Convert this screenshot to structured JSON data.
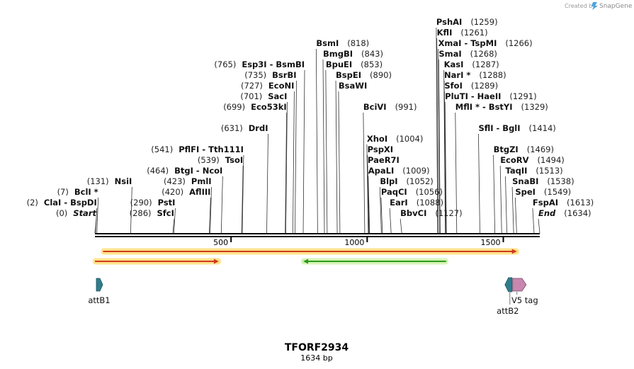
{
  "branding": {
    "credit": "Created by",
    "brand": "SnapGene"
  },
  "map": {
    "title": "TFORF2934",
    "length_label": "1634 bp",
    "length_bp": 1634,
    "ticks": [
      {
        "pos": 500,
        "label": "500"
      },
      {
        "pos": 1000,
        "label": "1000"
      },
      {
        "pos": 1500,
        "label": "1500"
      }
    ],
    "sites": [
      {
        "pos": 0,
        "num": "(0)",
        "name": "Start",
        "side": "right",
        "row": 0,
        "italic": true
      },
      {
        "pos": 2,
        "num": "(2)",
        "name": "ClaI  -  BspDI",
        "side": "right",
        "row": 1
      },
      {
        "pos": 7,
        "num": "(7)",
        "name": "BclI *",
        "side": "right",
        "row": 2
      },
      {
        "pos": 131,
        "num": "(131)",
        "name": "NsiI",
        "side": "right",
        "row": 3
      },
      {
        "pos": 286,
        "num": "(286)",
        "name": "SfcI",
        "side": "right",
        "row": 0
      },
      {
        "pos": 290,
        "num": "(290)",
        "name": "PstI",
        "side": "right",
        "row": 1
      },
      {
        "pos": 420,
        "num": "(420)",
        "name": "AflIII",
        "side": "right",
        "row": 2
      },
      {
        "pos": 423,
        "num": "(423)",
        "name": "PmlI",
        "side": "right",
        "row": 3
      },
      {
        "pos": 464,
        "num": "(464)",
        "name": "BtgI  -  NcoI",
        "side": "right",
        "row": 4
      },
      {
        "pos": 539,
        "num": "(539)",
        "name": "TsoI",
        "side": "right",
        "row": 5
      },
      {
        "pos": 541,
        "num": "(541)",
        "name": "PflFI  -  Tth111I",
        "side": "right",
        "row": 6
      },
      {
        "pos": 631,
        "num": "(631)",
        "name": "DrdI",
        "side": "right",
        "row": 8
      },
      {
        "pos": 699,
        "num": "(699)",
        "name": "Eco53kI",
        "side": "right",
        "row": 10
      },
      {
        "pos": 701,
        "num": "(701)",
        "name": "SacI",
        "side": "right",
        "row": 11
      },
      {
        "pos": 727,
        "num": "(727)",
        "name": "EcoNI",
        "side": "right",
        "row": 12
      },
      {
        "pos": 735,
        "num": "(735)",
        "name": "BsrBI",
        "side": "right",
        "row": 13
      },
      {
        "pos": 765,
        "num": "(765)",
        "name": "Esp3I  -  BsmBI",
        "side": "right",
        "row": 14
      },
      {
        "pos": 818,
        "num": "(818)",
        "name": "BsmI",
        "side": "left",
        "row": 16
      },
      {
        "pos": 843,
        "num": "(843)",
        "name": "BmgBI",
        "side": "left",
        "row": 15
      },
      {
        "pos": 853,
        "num": "(853)",
        "name": "BpuEI",
        "side": "left",
        "row": 14
      },
      {
        "pos": 890,
        "num": "(890)",
        "name": "BspEI",
        "side": "left",
        "row": 13
      },
      {
        "pos": 900,
        "num": "",
        "name": "BsaWI",
        "side": "left",
        "row": 12
      },
      {
        "pos": 991,
        "num": "(991)",
        "name": "BciVI",
        "side": "left",
        "row": 10
      },
      {
        "pos": 1004,
        "num": "(1004)",
        "name": "XhoI",
        "side": "left",
        "row": 7
      },
      {
        "pos": 1006,
        "num": "",
        "name": "PspXI",
        "side": "left",
        "row": 6
      },
      {
        "pos": 1007,
        "num": "",
        "name": "PaeR7I",
        "side": "left",
        "row": 5
      },
      {
        "pos": 1009,
        "num": "(1009)",
        "name": "ApaLI",
        "side": "left",
        "row": 4
      },
      {
        "pos": 1052,
        "num": "(1052)",
        "name": "BlpI",
        "side": "left",
        "row": 3
      },
      {
        "pos": 1056,
        "num": "(1056)",
        "name": "PaqCI",
        "side": "left",
        "row": 2
      },
      {
        "pos": 1088,
        "num": "(1088)",
        "name": "EarI",
        "side": "left",
        "row": 1
      },
      {
        "pos": 1127,
        "num": "(1127)",
        "name": "BbvCI",
        "side": "left",
        "row": 0
      },
      {
        "pos": 1259,
        "num": "(1259)",
        "name": "PshAI",
        "side": "left",
        "row": 18
      },
      {
        "pos": 1261,
        "num": "(1261)",
        "name": "KflI",
        "side": "left",
        "row": 17
      },
      {
        "pos": 1266,
        "num": "(1266)",
        "name": "XmaI  -  TspMI",
        "side": "left",
        "row": 16
      },
      {
        "pos": 1268,
        "num": "(1268)",
        "name": "SmaI",
        "side": "left",
        "row": 15
      },
      {
        "pos": 1287,
        "num": "(1287)",
        "name": "KasI",
        "side": "left",
        "row": 14
      },
      {
        "pos": 1288,
        "num": "(1288)",
        "name": "NarI *",
        "side": "left",
        "row": 13
      },
      {
        "pos": 1289,
        "num": "(1289)",
        "name": "SfoI",
        "side": "left",
        "row": 12
      },
      {
        "pos": 1291,
        "num": "(1291)",
        "name": "PluTI  -  HaeII",
        "side": "left",
        "row": 11
      },
      {
        "pos": 1329,
        "num": "(1329)",
        "name": "MflI *  -  BstYI",
        "side": "left",
        "row": 10
      },
      {
        "pos": 1414,
        "num": "(1414)",
        "name": "SflI  -  BglI",
        "side": "left",
        "row": 8
      },
      {
        "pos": 1469,
        "num": "(1469)",
        "name": "BtgZI",
        "side": "left",
        "row": 6
      },
      {
        "pos": 1494,
        "num": "(1494)",
        "name": "EcoRV",
        "side": "left",
        "row": 5
      },
      {
        "pos": 1513,
        "num": "(1513)",
        "name": "TaqII",
        "side": "left",
        "row": 4
      },
      {
        "pos": 1538,
        "num": "(1538)",
        "name": "SnaBI",
        "side": "left",
        "row": 3
      },
      {
        "pos": 1549,
        "num": "(1549)",
        "name": "SpeI",
        "side": "left",
        "row": 2
      },
      {
        "pos": 1613,
        "num": "(1613)",
        "name": "FspAI",
        "side": "left",
        "row": 1
      },
      {
        "pos": 1634,
        "num": "(1634)",
        "name": "End",
        "side": "left",
        "row": 0,
        "italic": true
      }
    ],
    "orfs": [
      {
        "start": 30,
        "end": 1550,
        "strand": "+",
        "color": "#d13a1c",
        "glow": "#ffd966",
        "level": 0
      },
      {
        "start": 0,
        "end": 455,
        "strand": "+",
        "color": "#d13a1c",
        "glow": "#ffd966",
        "level": 1
      },
      {
        "start": 765,
        "end": 1290,
        "strand": "-",
        "color": "#2e9a1a",
        "glow": "#c8f0a0",
        "level": 1
      }
    ],
    "features": [
      {
        "name": "attB1",
        "pos": 13,
        "strand": "+",
        "color": "#2f7d8c",
        "label": "attB1"
      },
      {
        "name": "attB2",
        "pos": 1519,
        "strand": "-",
        "color": "#2f7d8c",
        "label": "attB2"
      },
      {
        "name": "v5-tag",
        "pos": 1545,
        "strand": "+",
        "color": "#c987b0",
        "label": "V5 tag"
      }
    ]
  }
}
